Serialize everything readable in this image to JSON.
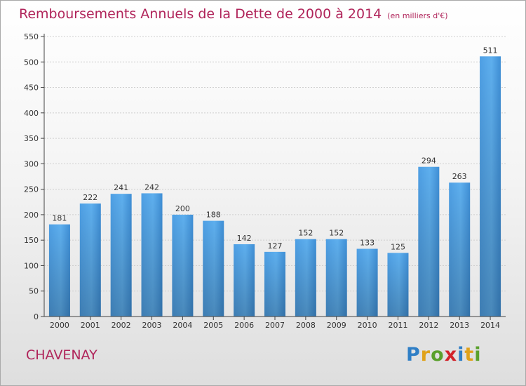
{
  "chart_data": {
    "type": "bar",
    "title": "Remboursements Annuels de la Dette de 2000 à 2014",
    "subtitle": "(en milliers d'€)",
    "categories": [
      "2000",
      "2001",
      "2002",
      "2003",
      "2004",
      "2005",
      "2006",
      "2007",
      "2008",
      "2009",
      "2010",
      "2011",
      "2012",
      "2013",
      "2014"
    ],
    "values": [
      181,
      222,
      241,
      242,
      200,
      188,
      142,
      127,
      152,
      152,
      133,
      125,
      294,
      263,
      511
    ],
    "ylim": [
      0,
      550
    ],
    "yticks": [
      0,
      50,
      100,
      150,
      200,
      250,
      300,
      350,
      400,
      450,
      500,
      550
    ],
    "grid": true,
    "bar_color": "#3f8fd6"
  },
  "footer": {
    "place": "CHAVENAY",
    "logo_letters": [
      {
        "ch": "P",
        "color": "#2f7fc6"
      },
      {
        "ch": "r",
        "color": "#e0a21a"
      },
      {
        "ch": "o",
        "color": "#5aa02c"
      },
      {
        "ch": "x",
        "color": "#d2232a"
      },
      {
        "ch": "i",
        "color": "#2f7fc6"
      },
      {
        "ch": "t",
        "color": "#e0a21a"
      },
      {
        "ch": "i",
        "color": "#5aa02c"
      }
    ]
  }
}
